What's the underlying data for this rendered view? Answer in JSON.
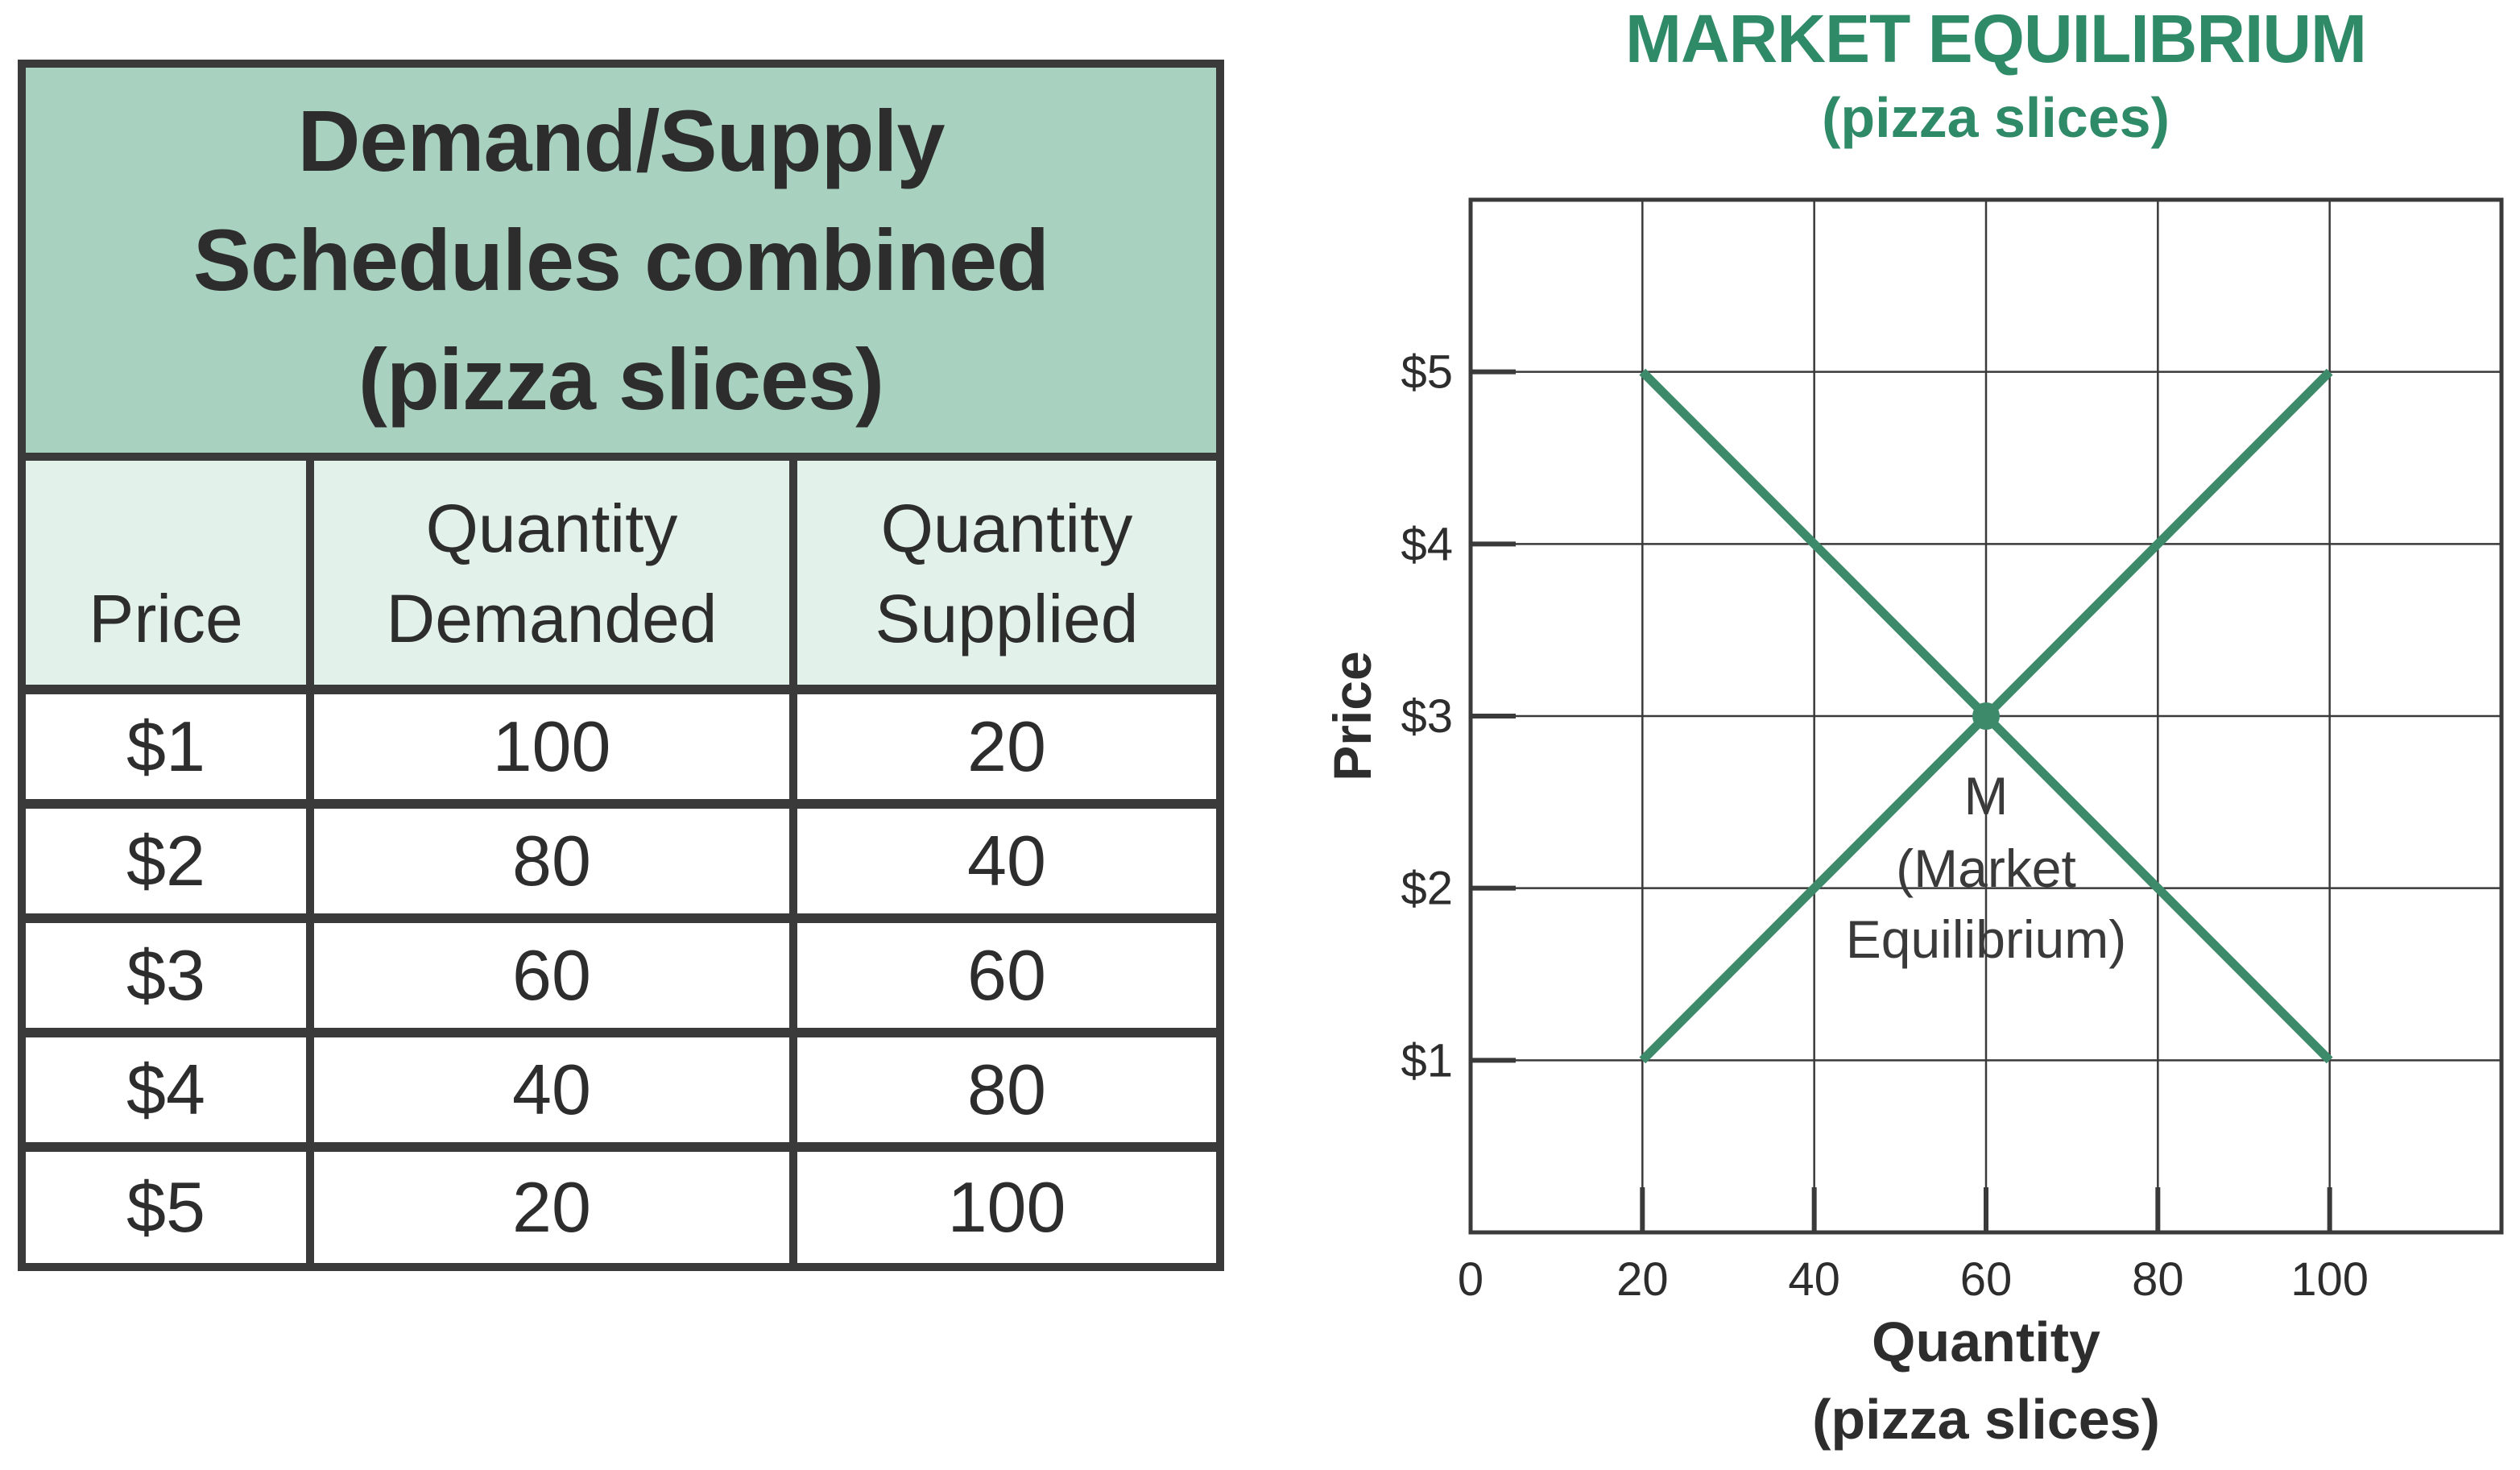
{
  "table": {
    "title_lines": [
      "Demand/Supply",
      "Schedules  combined",
      "(pizza  slices)"
    ],
    "headers": {
      "price": [
        "Price"
      ],
      "demanded": [
        "Quantity",
        "Demanded"
      ],
      "supplied": [
        "Quantity",
        "Supplied"
      ]
    },
    "rows": [
      {
        "price": "$1",
        "demanded": "100",
        "supplied": "20"
      },
      {
        "price": "$2",
        "demanded": "80",
        "supplied": "40"
      },
      {
        "price": "$3",
        "demanded": "60",
        "supplied": "60"
      },
      {
        "price": "$4",
        "demanded": "40",
        "supplied": "80"
      },
      {
        "price": "$5",
        "demanded": "20",
        "supplied": "100"
      }
    ],
    "colors": {
      "header_fill": "#a8d1bf",
      "subheader_fill": "#e3f1eb",
      "border": "#3a3a3a"
    }
  },
  "chart_data": {
    "type": "line",
    "title": "MARKET EQUILIBRIUM",
    "subtitle": "(pizza slices)",
    "xlabel": [
      "Quantity",
      "(pizza slices)"
    ],
    "ylabel": "Price",
    "xlim": [
      0,
      120
    ],
    "ylim": [
      0,
      6
    ],
    "x_ticks": [
      0,
      20,
      40,
      60,
      80,
      100
    ],
    "x_tick_labels": [
      "0",
      "20",
      "40",
      "60",
      "80",
      "100"
    ],
    "y_ticks": [
      1,
      2,
      3,
      4,
      5
    ],
    "y_tick_labels": [
      "$1",
      "$2",
      "$3",
      "$4",
      "$5"
    ],
    "grid": true,
    "line_color": "#3c8a6a",
    "title_color": "#2f8a68",
    "series": [
      {
        "points": [
          [
            20,
            5
          ],
          [
            40,
            4
          ],
          [
            60,
            3
          ],
          [
            80,
            2
          ],
          [
            100,
            1
          ]
        ]
      },
      {
        "points": [
          [
            20,
            1
          ],
          [
            40,
            2
          ],
          [
            60,
            3
          ],
          [
            80,
            4
          ],
          [
            100,
            5
          ]
        ]
      }
    ],
    "annotations": [
      {
        "x": 60,
        "y": 3,
        "marker": "dot",
        "lines": [
          "M",
          "(Market",
          "Equilibrium)"
        ]
      }
    ]
  }
}
